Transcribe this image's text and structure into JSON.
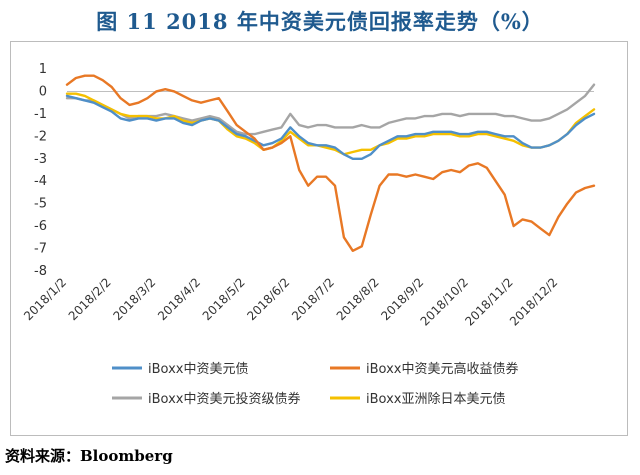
{
  "title": "图 11 2018 年中资美元债回报率走势（%）",
  "source": "资料来源：Bloomberg",
  "chart_data": {
    "type": "line",
    "title": "图 11 2018 年中资美元债回报率走势（%）",
    "xlabel": "",
    "ylabel": "",
    "ylim": [
      -8,
      1
    ],
    "yticks": [
      1,
      0,
      -1,
      -2,
      -3,
      -4,
      -5,
      -6,
      -7,
      -8
    ],
    "xlim": [
      0,
      11.8
    ],
    "xtick_labels": [
      "2018/1/2",
      "2018/2/2",
      "2018/3/2",
      "2018/4/2",
      "2018/5/2",
      "2018/6/2",
      "2018/7/2",
      "2018/8/2",
      "2018/9/2",
      "2018/10/2",
      "2018/11/2",
      "2018/12/2"
    ],
    "grid": false,
    "legend": "bottom",
    "x": [
      0,
      0.2,
      0.4,
      0.6,
      0.8,
      1,
      1.2,
      1.4,
      1.6,
      1.8,
      2,
      2.2,
      2.4,
      2.6,
      2.8,
      3,
      3.2,
      3.4,
      3.6,
      3.8,
      4,
      4.2,
      4.4,
      4.6,
      4.8,
      5,
      5.2,
      5.4,
      5.6,
      5.8,
      6,
      6.2,
      6.4,
      6.6,
      6.8,
      7,
      7.2,
      7.4,
      7.6,
      7.8,
      8,
      8.2,
      8.4,
      8.6,
      8.8,
      9,
      9.2,
      9.4,
      9.6,
      9.8,
      10,
      10.2,
      10.4,
      10.6,
      10.8,
      11,
      11.2,
      11.4,
      11.6,
      11.8
    ],
    "series": [
      {
        "name": "iBoxx中资美元债",
        "color": "#4f8fc8",
        "values": [
          -0.2,
          -0.3,
          -0.4,
          -0.5,
          -0.7,
          -0.9,
          -1.2,
          -1.3,
          -1.2,
          -1.2,
          -1.3,
          -1.2,
          -1.2,
          -1.4,
          -1.5,
          -1.3,
          -1.2,
          -1.3,
          -1.6,
          -1.9,
          -2.0,
          -2.2,
          -2.4,
          -2.3,
          -2.1,
          -1.6,
          -2.0,
          -2.3,
          -2.4,
          -2.4,
          -2.5,
          -2.8,
          -3.0,
          -3.0,
          -2.8,
          -2.4,
          -2.2,
          -2.0,
          -2.0,
          -1.9,
          -1.9,
          -1.8,
          -1.8,
          -1.8,
          -1.9,
          -1.9,
          -1.8,
          -1.8,
          -1.9,
          -2.0,
          -2.0,
          -2.3,
          -2.5,
          -2.5,
          -2.4,
          -2.2,
          -1.9,
          -1.5,
          -1.2,
          -1.0
        ]
      },
      {
        "name": "iBoxx中资美元高收益债券",
        "color": "#e87825",
        "values": [
          0.3,
          0.6,
          0.7,
          0.7,
          0.5,
          0.2,
          -0.3,
          -0.6,
          -0.5,
          -0.3,
          0.0,
          0.1,
          0.0,
          -0.2,
          -0.4,
          -0.5,
          -0.4,
          -0.3,
          -0.9,
          -1.5,
          -1.8,
          -2.1,
          -2.6,
          -2.5,
          -2.3,
          -2.0,
          -3.5,
          -4.2,
          -3.8,
          -3.8,
          -4.2,
          -6.5,
          -7.1,
          -6.9,
          -5.5,
          -4.2,
          -3.7,
          -3.7,
          -3.8,
          -3.7,
          -3.8,
          -3.9,
          -3.6,
          -3.5,
          -3.6,
          -3.3,
          -3.2,
          -3.4,
          -4.0,
          -4.6,
          -6.0,
          -5.7,
          -5.8,
          -6.1,
          -6.4,
          -5.6,
          -5.0,
          -4.5,
          -4.3,
          -4.2
        ]
      },
      {
        "name": "iBoxx中资美元投资级债券",
        "color": "#a5a5a5",
        "values": [
          -0.3,
          -0.3,
          -0.4,
          -0.4,
          -0.6,
          -0.8,
          -1.0,
          -1.2,
          -1.1,
          -1.1,
          -1.1,
          -1.0,
          -1.1,
          -1.2,
          -1.3,
          -1.2,
          -1.1,
          -1.2,
          -1.5,
          -1.8,
          -1.9,
          -1.9,
          -1.8,
          -1.7,
          -1.6,
          -1.0,
          -1.5,
          -1.6,
          -1.5,
          -1.5,
          -1.6,
          -1.6,
          -1.6,
          -1.5,
          -1.6,
          -1.6,
          -1.4,
          -1.3,
          -1.2,
          -1.2,
          -1.1,
          -1.1,
          -1.0,
          -1.0,
          -1.1,
          -1.0,
          -1.0,
          -1.0,
          -1.0,
          -1.1,
          -1.1,
          -1.2,
          -1.3,
          -1.3,
          -1.2,
          -1.0,
          -0.8,
          -0.5,
          -0.2,
          0.3
        ]
      },
      {
        "name": "iBoxx亚洲除日本美元债",
        "color": "#f5c000",
        "values": [
          -0.1,
          -0.1,
          -0.2,
          -0.4,
          -0.6,
          -0.8,
          -1.0,
          -1.1,
          -1.1,
          -1.1,
          -1.2,
          -1.2,
          -1.1,
          -1.3,
          -1.4,
          -1.3,
          -1.2,
          -1.3,
          -1.7,
          -2.0,
          -2.1,
          -2.3,
          -2.6,
          -2.5,
          -2.2,
          -1.8,
          -2.1,
          -2.4,
          -2.4,
          -2.5,
          -2.6,
          -2.8,
          -2.7,
          -2.6,
          -2.6,
          -2.4,
          -2.3,
          -2.1,
          -2.1,
          -2.0,
          -2.0,
          -1.9,
          -1.9,
          -1.9,
          -2.0,
          -2.0,
          -1.9,
          -1.9,
          -2.0,
          -2.1,
          -2.2,
          -2.4,
          -2.5,
          -2.5,
          -2.4,
          -2.2,
          -1.9,
          -1.4,
          -1.1,
          -0.8
        ]
      }
    ]
  }
}
